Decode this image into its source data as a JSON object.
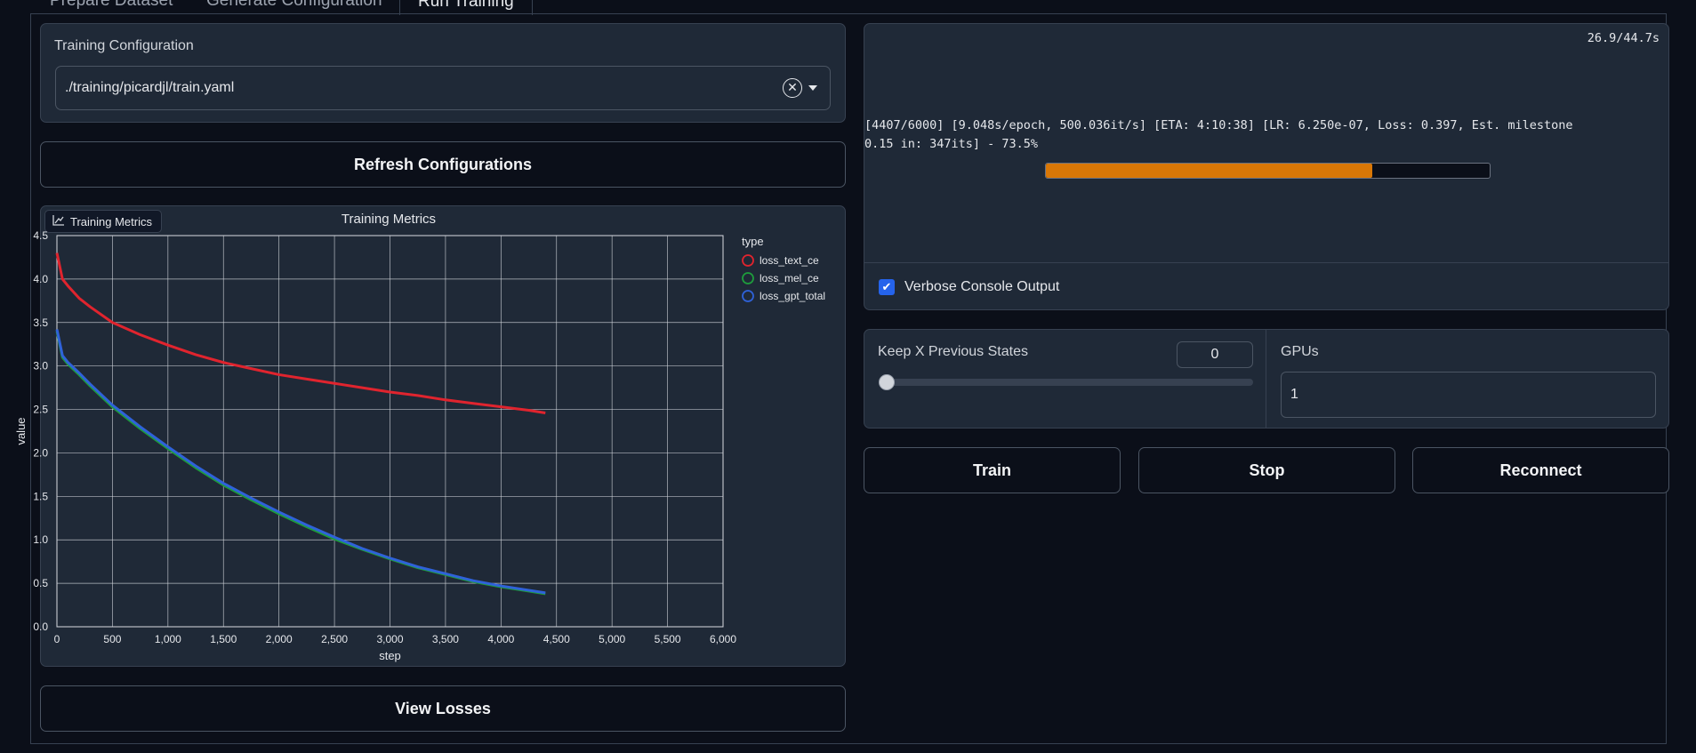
{
  "tabs": [
    {
      "label": "Prepare Dataset"
    },
    {
      "label": "Generate Configuration"
    },
    {
      "label": "Run Training"
    }
  ],
  "config": {
    "label": "Training Configuration",
    "value": "./training/picardjl/train.yaml"
  },
  "refresh_button": "Refresh Configurations",
  "plot": {
    "badge_label": "Training Metrics"
  },
  "chart_data": {
    "type": "line",
    "title": "Training Metrics",
    "xlabel": "step",
    "ylabel": "value",
    "xlim": [
      0,
      6000
    ],
    "ylim": [
      0,
      4.5
    ],
    "xticks": [
      "0",
      "500",
      "1,000",
      "1,500",
      "2,000",
      "2,500",
      "3,000",
      "3,500",
      "4,000",
      "4,500",
      "5,000",
      "5,500",
      "6,000"
    ],
    "yticks": [
      "0.0",
      "0.5",
      "1.0",
      "1.5",
      "2.0",
      "2.5",
      "3.0",
      "3.5",
      "4.0",
      "4.5"
    ],
    "legend_title": "type",
    "legend_position": "right",
    "grid": true,
    "series": [
      {
        "name": "loss_text_ce",
        "color": "#e0242e",
        "x": [
          0,
          50,
          100,
          200,
          300,
          500,
          750,
          1000,
          1250,
          1500,
          1750,
          2000,
          2250,
          2500,
          2750,
          3000,
          3250,
          3500,
          3750,
          4000,
          4250,
          4400
        ],
        "y": [
          4.3,
          4.0,
          3.92,
          3.78,
          3.68,
          3.5,
          3.36,
          3.24,
          3.13,
          3.04,
          2.97,
          2.9,
          2.85,
          2.8,
          2.75,
          2.7,
          2.66,
          2.61,
          2.57,
          2.53,
          2.49,
          2.46
        ]
      },
      {
        "name": "loss_mel_ce",
        "color": "#1e9c3c",
        "x": [
          0,
          50,
          100,
          200,
          300,
          500,
          750,
          1000,
          1250,
          1500,
          1750,
          2000,
          2250,
          2500,
          2750,
          3000,
          3250,
          3500,
          3750,
          4000,
          4250,
          4400
        ],
        "y": [
          3.4,
          3.1,
          3.02,
          2.9,
          2.77,
          2.53,
          2.28,
          2.05,
          1.83,
          1.63,
          1.46,
          1.3,
          1.15,
          1.01,
          0.89,
          0.78,
          0.68,
          0.6,
          0.52,
          0.46,
          0.41,
          0.38
        ]
      },
      {
        "name": "loss_gpt_total",
        "color": "#2f62d9",
        "x": [
          0,
          50,
          100,
          200,
          300,
          500,
          750,
          1000,
          1250,
          1500,
          1750,
          2000,
          2250,
          2500,
          2750,
          3000,
          3250,
          3500,
          3750,
          4000,
          4250,
          4400
        ],
        "y": [
          3.42,
          3.12,
          3.04,
          2.92,
          2.79,
          2.55,
          2.3,
          2.07,
          1.85,
          1.65,
          1.48,
          1.32,
          1.17,
          1.03,
          0.9,
          0.79,
          0.69,
          0.61,
          0.53,
          0.47,
          0.42,
          0.39
        ]
      }
    ]
  },
  "view_losses_button": "View Losses",
  "console": {
    "timer": "26.9/44.7s",
    "line1": "[4407/6000] [9.048s/epoch, 500.036it/s] [ETA: 4:10:38] [LR: 6.250e-07, Loss: 0.397, Est. milestone",
    "line2": "0.15 in: 347its] - 73.5%",
    "progress": 0.735,
    "progress_color": "#d97706"
  },
  "verbose": {
    "label": "Verbose Console Output",
    "checked": true
  },
  "keep_states": {
    "label": "Keep X Previous States",
    "value": "0",
    "slider_value": 0
  },
  "gpus": {
    "label": "GPUs",
    "value": "1"
  },
  "actions": {
    "train": "Train",
    "stop": "Stop",
    "reconnect": "Reconnect"
  }
}
